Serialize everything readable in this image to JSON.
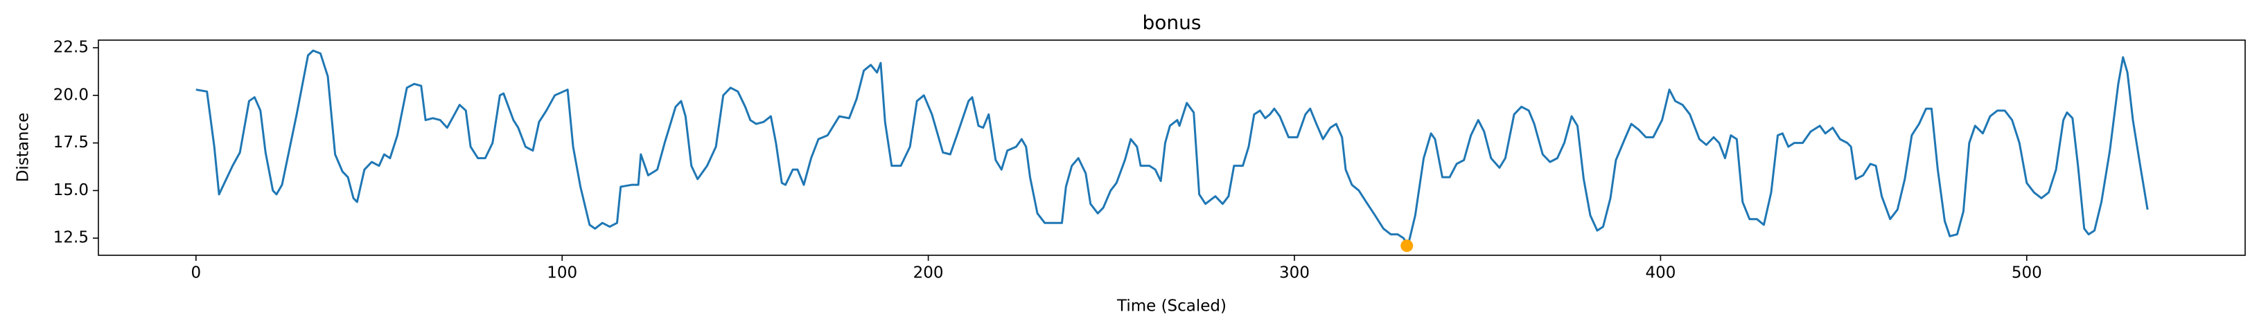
{
  "chart_data": {
    "type": "line",
    "title": "bonus",
    "xlabel": "Time (Scaled)",
    "ylabel": "Distance",
    "color": "#1f77b4",
    "x": [
      0,
      3,
      5,
      6.3,
      10,
      12,
      14.5,
      16,
      17.6,
      19,
      21,
      22,
      23.5,
      27.5,
      30.6,
      32,
      34,
      36,
      38,
      40,
      41.5,
      43,
      44,
      46,
      48,
      50,
      51.4,
      53,
      55,
      57.6,
      59.6,
      61.5,
      62.7,
      64.7,
      66.7,
      68.6,
      70.6,
      72,
      73.7,
      75,
      77,
      79,
      81,
      83,
      84,
      86.7,
      88,
      90,
      92,
      93.7,
      95.7,
      98,
      101.5,
      103,
      105,
      107.5,
      109,
      111,
      113,
      115,
      116,
      119,
      120.8,
      121.5,
      123.5,
      126,
      128,
      131,
      132.5,
      133.7,
      135.3,
      137,
      139.6,
      142,
      144,
      146,
      148,
      150,
      151.4,
      153,
      155,
      157,
      158.4,
      160,
      161,
      163,
      164.3,
      166,
      168,
      170,
      172.5,
      175.7,
      178.4,
      180.4,
      182.4,
      184.3,
      186,
      187,
      188.2,
      190,
      192.5,
      195,
      196.9,
      198.8,
      201,
      204,
      206,
      208,
      211,
      212,
      213.7,
      215,
      216.5,
      218.4,
      220,
      221.6,
      224,
      225.5,
      226.7,
      227.8,
      229.8,
      231.8,
      234,
      236.5,
      237.6,
      239.2,
      241,
      243,
      244.3,
      246.3,
      247.8,
      249.8,
      251.4,
      253.7,
      255.3,
      257,
      258,
      260.4,
      262,
      263.5,
      264.7,
      266,
      268,
      268.6,
      270.6,
      272.5,
      274,
      275.7,
      278.4,
      280.4,
      282,
      283.5,
      285.9,
      287.5,
      289,
      290.6,
      292,
      293.3,
      294.5,
      296,
      298.4,
      300.8,
      303,
      304.3,
      306,
      307.8,
      309.8,
      311.4,
      313,
      314,
      315.7,
      317.6,
      319.6,
      322,
      324.3,
      326.3,
      328.2,
      329.8,
      331,
      333,
      335.3,
      337.3,
      338.4,
      340.4,
      342.4,
      344.3,
      346.3,
      348.2,
      350.2,
      351.8,
      353.7,
      356,
      357.6,
      360,
      362,
      364,
      365.5,
      367.8,
      369.8,
      371.8,
      373.7,
      375.7,
      377.3,
      379,
      380.8,
      382.7,
      384.3,
      386.3,
      387.8,
      390.2,
      392,
      394,
      396,
      398,
      400.4,
      402.4,
      404,
      406,
      408,
      410.6,
      412.5,
      414.5,
      416,
      417.6,
      419.2,
      420.8,
      422.4,
      424.3,
      426.3,
      428.2,
      430.2,
      432,
      433.3,
      434.9,
      436.5,
      438.8,
      441,
      443.5,
      445,
      447,
      449,
      451,
      452,
      453.3,
      455.3,
      457.3,
      458.8,
      460.4,
      462.7,
      464.7,
      466.7,
      468.6,
      470.6,
      472.5,
      474,
      475.7,
      477.6,
      479,
      481,
      482.7,
      484.3,
      485.9,
      488,
      490,
      492,
      494,
      496,
      498,
      500,
      502,
      504,
      506,
      508,
      510,
      511,
      512.5,
      514,
      515.7,
      516.9,
      518.5,
      520.4,
      522.7,
      525,
      526.3,
      527.5,
      529,
      531,
      533
    ],
    "values": [
      20.3,
      20.2,
      17.3,
      14.8,
      16.3,
      17,
      19.7,
      19.9,
      19.2,
      17,
      15,
      14.8,
      15.3,
      19,
      22.1,
      22.35,
      22.2,
      21,
      16.9,
      16,
      15.7,
      14.6,
      14.4,
      16.1,
      16.5,
      16.3,
      16.9,
      16.7,
      17.9,
      20.4,
      20.6,
      20.5,
      18.7,
      18.8,
      18.7,
      18.3,
      19,
      19.5,
      19.2,
      17.3,
      16.7,
      16.7,
      17.5,
      20,
      20.1,
      18.7,
      18.3,
      17.3,
      17.1,
      18.6,
      19.2,
      20,
      20.3,
      17.3,
      15.2,
      13.2,
      13,
      13.3,
      13.1,
      13.3,
      15.2,
      15.3,
      15.3,
      16.9,
      15.8,
      16.1,
      17.5,
      19.4,
      19.7,
      18.9,
      16.3,
      15.6,
      16.3,
      17.3,
      20,
      20.4,
      20.2,
      19.4,
      18.7,
      18.5,
      18.6,
      18.9,
      17.5,
      15.4,
      15.3,
      16.1,
      16.1,
      15.3,
      16.7,
      17.7,
      17.9,
      18.9,
      18.8,
      19.8,
      21.3,
      21.6,
      21.2,
      21.7,
      18.6,
      16.3,
      16.3,
      17.3,
      19.7,
      20,
      19,
      17,
      16.9,
      18,
      19.7,
      19.9,
      18.4,
      18.3,
      19,
      16.6,
      16.1,
      17.1,
      17.3,
      17.7,
      17.3,
      15.7,
      13.8,
      13.3,
      13.3,
      13.3,
      15.2,
      16.3,
      16.7,
      15.9,
      14.3,
      13.8,
      14.1,
      15,
      15.4,
      16.6,
      17.7,
      17.3,
      16.3,
      16.3,
      16.1,
      15.5,
      17.5,
      18.4,
      18.7,
      18.4,
      19.6,
      19.1,
      14.8,
      14.3,
      14.7,
      14.3,
      14.7,
      16.3,
      16.3,
      17.3,
      19,
      19.2,
      18.8,
      19,
      19.3,
      18.9,
      17.8,
      17.8,
      19,
      19.3,
      18.5,
      17.7,
      18.3,
      18.5,
      17.8,
      16.1,
      15.3,
      15,
      14.4,
      13.7,
      13,
      12.7,
      12.7,
      12.5,
      12.1,
      13.7,
      16.7,
      18,
      17.7,
      15.7,
      15.7,
      16.4,
      16.6,
      17.9,
      18.7,
      18.1,
      16.7,
      16.2,
      16.7,
      19,
      19.4,
      19.2,
      18.5,
      16.9,
      16.5,
      16.7,
      17.5,
      18.9,
      18.4,
      15.6,
      13.7,
      12.9,
      13.1,
      14.6,
      16.6,
      17.7,
      18.5,
      18.2,
      17.8,
      17.8,
      18.7,
      20.3,
      19.7,
      19.5,
      19,
      17.7,
      17.4,
      17.8,
      17.5,
      16.7,
      17.9,
      17.7,
      14.4,
      13.5,
      13.5,
      13.2,
      14.9,
      17.9,
      18,
      17.3,
      17.5,
      17.5,
      18.1,
      18.4,
      18,
      18.3,
      17.7,
      17.5,
      17.3,
      15.6,
      15.8,
      16.4,
      16.3,
      14.7,
      13.5,
      14,
      15.6,
      17.9,
      18.5,
      19.3,
      19.3,
      16.1,
      13.4,
      12.6,
      12.7,
      13.9,
      17.5,
      18.4,
      18,
      18.9,
      19.2,
      19.2,
      18.7,
      17.5,
      15.4,
      14.9,
      14.6,
      14.9,
      16.1,
      18.7,
      19.1,
      18.8,
      16.3,
      13,
      12.7,
      12.9,
      14.4,
      17.1,
      20.6,
      22,
      21.2,
      18.7,
      16.3,
      14
    ],
    "marker": {
      "x": 330.7,
      "y": 12.1,
      "color": "#ffa500"
    },
    "xlim": [
      -26.65,
      559.65
    ],
    "xticks": [
      0,
      100,
      200,
      300,
      400,
      500
    ],
    "ylim": [
      11.6,
      22.9
    ],
    "yticks": [
      12.5,
      {
        "value": 15,
        "label": "15.0"
      },
      17.5,
      {
        "value": 20,
        "label": "20.0"
      },
      22.5
    ]
  }
}
